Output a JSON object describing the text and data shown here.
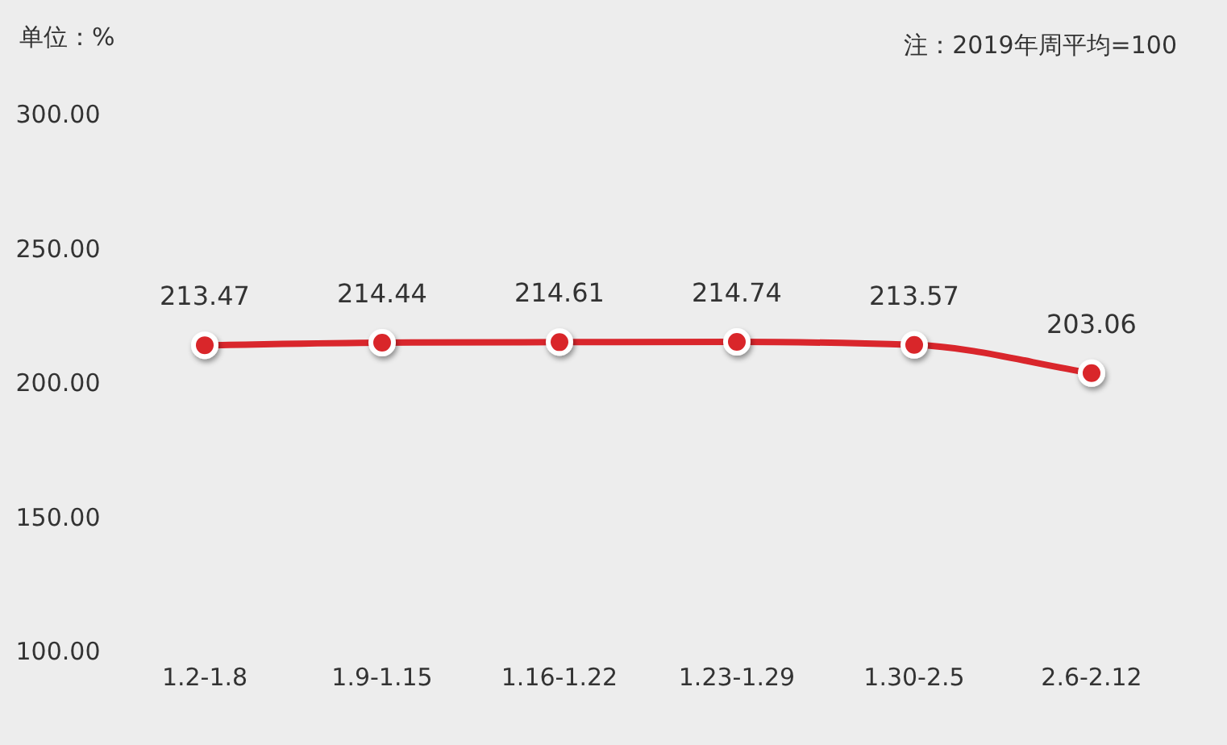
{
  "chart_data": {
    "type": "line",
    "ylabel": "单位：%",
    "annotations": [
      "注：2019年周平均=100"
    ],
    "categories": [
      "1.2-1.8",
      "1.9-1.15",
      "1.16-1.22",
      "1.23-1.29",
      "1.30-2.5",
      "2.6-2.12"
    ],
    "series": [
      {
        "color": "#d9262c",
        "values": [
          213.47,
          214.44,
          214.61,
          214.74,
          213.57,
          203.06
        ]
      }
    ],
    "ylim": [
      100,
      300
    ],
    "yticks": [
      {
        "value": 100,
        "label": "100.00"
      },
      {
        "value": 150,
        "label": "150.00"
      },
      {
        "value": 200,
        "label": "200.00"
      },
      {
        "value": 250,
        "label": "250.00"
      },
      {
        "value": 300,
        "label": "300.00"
      }
    ],
    "data_labels": true,
    "marker": "circle",
    "line_style": "solid"
  }
}
